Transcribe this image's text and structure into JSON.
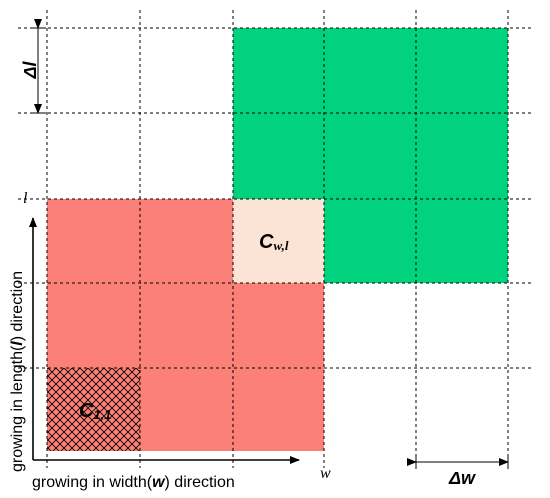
{
  "diagram": {
    "colors": {
      "green": "#00d27d",
      "red": "#fb8077",
      "cell_wl": "#fbe4d6",
      "white": "#ffffff",
      "line": "#000000"
    },
    "grid": {
      "columns": 5,
      "rows": 5
    },
    "red_cells": [
      [
        0,
        0
      ],
      [
        1,
        0
      ],
      [
        2,
        0
      ],
      [
        0,
        1
      ],
      [
        1,
        1
      ],
      [
        2,
        1
      ],
      [
        0,
        2
      ],
      [
        1,
        2
      ]
    ],
    "green_cells": [
      [
        2,
        3
      ],
      [
        3,
        3
      ],
      [
        4,
        3
      ],
      [
        2,
        4
      ],
      [
        3,
        4
      ],
      [
        4,
        4
      ],
      [
        3,
        2
      ],
      [
        4,
        2
      ]
    ],
    "hatched_cell": [
      0,
      0
    ],
    "highlight_cell": [
      2,
      2
    ],
    "labels": {
      "cell_11_main": "C",
      "cell_11_sub": "1,1",
      "cell_wl_main": "C",
      "cell_wl_sub": "w,l",
      "delta_l": "Δl",
      "delta_w": "Δw",
      "l_mark": "l",
      "w_mark": "w",
      "x_axis_pre": "growing in width(",
      "x_axis_var": "w",
      "x_axis_post": ") direction",
      "y_axis_pre": "growing in length(",
      "y_axis_var": "l",
      "y_axis_post": ") direction"
    }
  }
}
